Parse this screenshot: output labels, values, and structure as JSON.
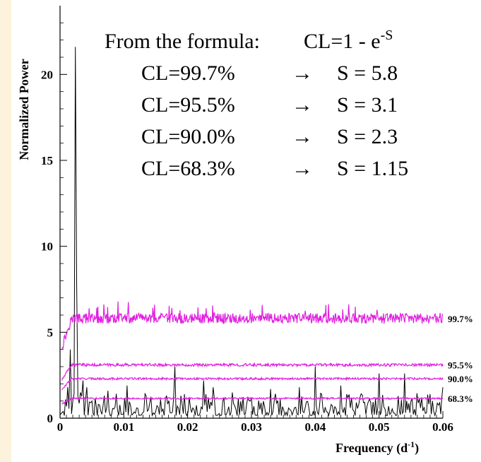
{
  "chart_data": {
    "type": "line",
    "title": "",
    "xlabel_main": "Frequency (d",
    "xlabel_sup": "-1",
    "xlabel_close": ")",
    "ylabel": "Normalized Power",
    "xlim": [
      0,
      0.06
    ],
    "ylim": [
      0,
      24
    ],
    "x_ticks": [
      0,
      0.01,
      0.02,
      0.03,
      0.04,
      0.05,
      0.06
    ],
    "x_tick_labels": [
      "0",
      "0.01",
      "0.02",
      "0.03",
      "0.04",
      "0.05",
      "0.06"
    ],
    "y_ticks": [
      0,
      5,
      10,
      15,
      20
    ],
    "y_tick_labels": [
      "0",
      "5",
      "10",
      "15",
      "20"
    ],
    "grid": false,
    "series": [
      {
        "x": [
          0.0005,
          0.0012,
          0.0016,
          0.002,
          0.0024,
          0.0026,
          0.0028,
          0.0032,
          0.0036,
          0.0042,
          0.005,
          0.006,
          0.0075,
          0.009,
          0.0105,
          0.012,
          0.0135,
          0.015,
          0.0165,
          0.018,
          0.0195,
          0.021,
          0.0225,
          0.024,
          0.0255,
          0.027,
          0.0285,
          0.03,
          0.0315,
          0.033,
          0.0345,
          0.036,
          0.0375,
          0.039,
          0.04,
          0.041,
          0.0425,
          0.044,
          0.0455,
          0.047,
          0.0485,
          0.05,
          0.0515,
          0.053,
          0.054,
          0.055,
          0.0565,
          0.058,
          0.0595,
          0.06
        ],
        "y": [
          0.4,
          1.8,
          4.0,
          1.0,
          21.6,
          8.0,
          1.2,
          1.5,
          2.2,
          1.8,
          1.0,
          0.8,
          1.6,
          0.5,
          1.9,
          0.6,
          1.3,
          0.4,
          1.1,
          3.0,
          1.4,
          0.5,
          2.2,
          1.8,
          1.0,
          1.5,
          0.4,
          1.2,
          0.9,
          1.7,
          1.1,
          0.5,
          1.8,
          0.6,
          3.0,
          1.4,
          0.8,
          1.9,
          0.6,
          1.2,
          1.1,
          2.6,
          0.7,
          1.3,
          2.6,
          1.0,
          0.6,
          1.4,
          0.9,
          1.8
        ],
        "color": "#000000"
      }
    ],
    "confidence_levels": [
      {
        "label": "99.7%",
        "level": 5.8,
        "color": "#e020e0"
      },
      {
        "label": "95.5%",
        "level": 3.1,
        "color": "#e020e0"
      },
      {
        "label": "90.0%",
        "level": 2.3,
        "color": "#e020e0"
      },
      {
        "label": "68.3%",
        "level": 1.15,
        "color": "#e020e0"
      }
    ],
    "annotation": {
      "formula_prefix": "From the formula:",
      "formula_main": "CL=1 - e",
      "formula_sup": "-S",
      "rows": [
        {
          "cl": "CL=99.7%",
          "arrow": "→",
          "s": "S = 5.8"
        },
        {
          "cl": "CL=95.5%",
          "arrow": "→",
          "s": "S = 3.1"
        },
        {
          "cl": "CL=90.0%",
          "arrow": "→",
          "s": "S = 2.3"
        },
        {
          "cl": "CL=68.3%",
          "arrow": "→",
          "s": "S = 1.15"
        }
      ]
    }
  }
}
